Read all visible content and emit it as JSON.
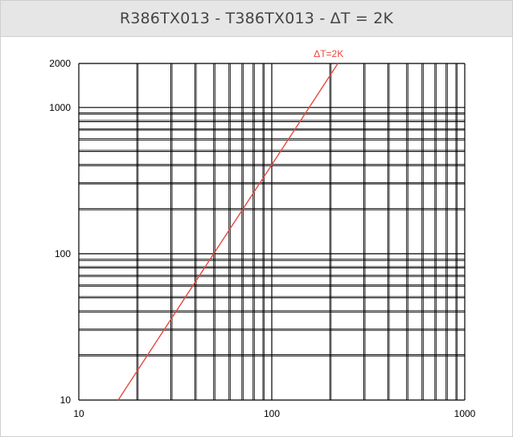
{
  "chart_data": {
    "type": "line",
    "title": "R386TX013 - T386TX013 - ΔT = 2K",
    "xscale": "log",
    "yscale": "log",
    "xlim": [
      10,
      1000
    ],
    "ylim": [
      10,
      2000
    ],
    "grid": true,
    "x_ticks": [
      "10",
      "100",
      "1000"
    ],
    "y_ticks": [
      "10",
      "100",
      "1000",
      "2000"
    ],
    "series": [
      {
        "name": "ΔT=2K",
        "color": "#e8473f",
        "points": [
          [
            16,
            10
          ],
          [
            50,
            100
          ],
          [
            220,
            2000
          ]
        ]
      }
    ]
  }
}
